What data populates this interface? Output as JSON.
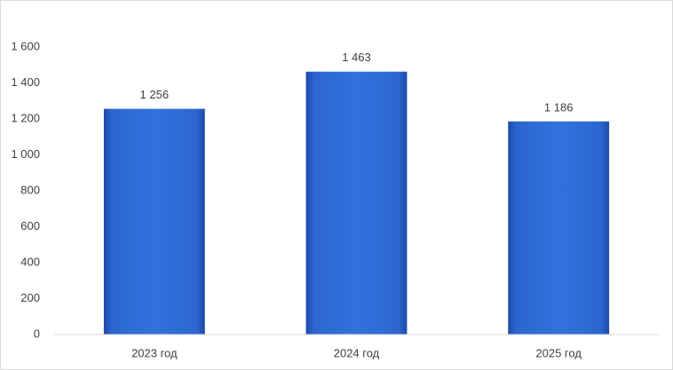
{
  "chart_data": {
    "type": "bar",
    "categories": [
      "2023 год",
      "2024 год",
      "2025 год"
    ],
    "values": [
      1256,
      1463,
      1186
    ],
    "value_labels": [
      "1 256",
      "1 463",
      "1 186"
    ],
    "color": "#3172dd",
    "ylim": [
      0,
      1600
    ],
    "yticks": [
      0,
      200,
      400,
      600,
      800,
      {
        "value": 1000,
        "label": "1 000"
      },
      {
        "value": 1200,
        "label": "1 200"
      },
      {
        "value": 1400,
        "label": "1 400"
      },
      {
        "value": 1600,
        "label": "1 600"
      }
    ]
  }
}
